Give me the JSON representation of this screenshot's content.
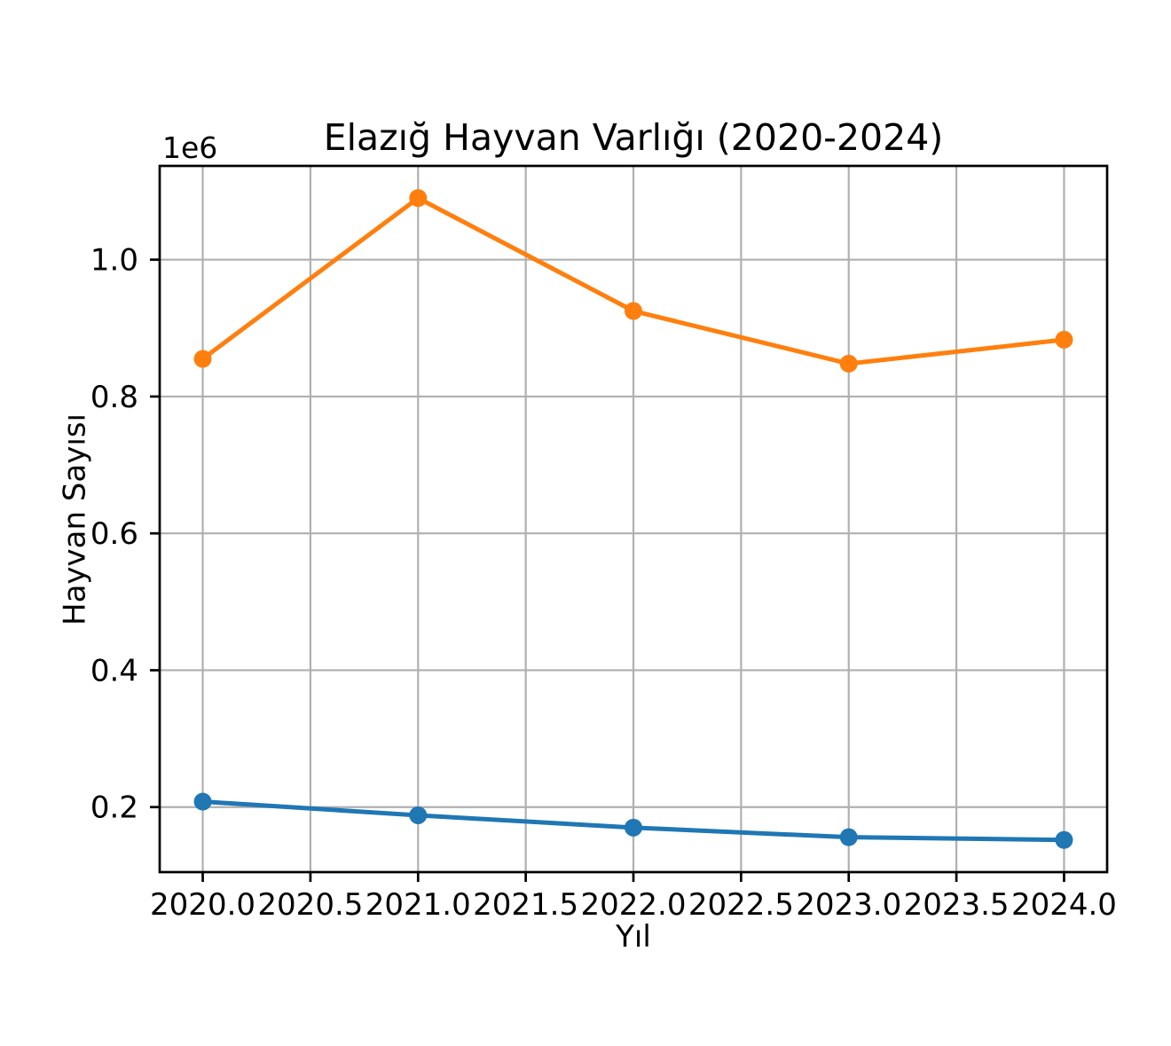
{
  "chart_data": {
    "type": "line",
    "title": "Elazığ Hayvan Varlığı (2020-2024)",
    "xlabel": "Yıl",
    "ylabel": "Hayvan Sayısı",
    "y_offset_label": "1e6",
    "x": [
      2020,
      2021,
      2022,
      2023,
      2024
    ],
    "series": [
      {
        "id": "blue",
        "color": "#1f77b4",
        "values": [
          208000,
          188000,
          170000,
          156000,
          152000
        ]
      },
      {
        "id": "orange",
        "color": "#ff7f0e",
        "values": [
          855000,
          1090000,
          925000,
          848000,
          883000
        ]
      }
    ],
    "xtick_values": [
      2020.0,
      2020.5,
      2021.0,
      2021.5,
      2022.0,
      2022.5,
      2023.0,
      2023.5,
      2024.0
    ],
    "xtick_labels": [
      "2020.0",
      "2020.5",
      "2021.0",
      "2021.5",
      "2022.0",
      "2022.5",
      "2023.0",
      "2023.5",
      "2024.0"
    ],
    "ytick_values": [
      200000,
      400000,
      600000,
      800000,
      1000000
    ],
    "ytick_labels": [
      "0.2",
      "0.4",
      "0.6",
      "0.8",
      "1.0"
    ],
    "xlim": [
      2019.8,
      2024.2
    ],
    "ylim": [
      105000,
      1137000
    ],
    "grid": true,
    "grid_color": "#b0b0b0",
    "spine_color": "#000000",
    "legend": "none",
    "marker": "o"
  }
}
